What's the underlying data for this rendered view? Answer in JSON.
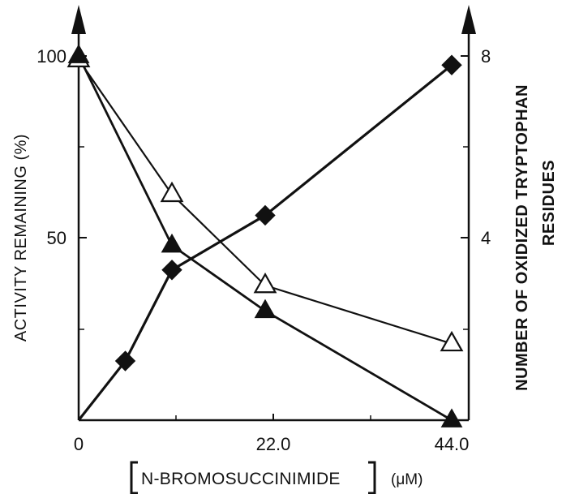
{
  "chart_data": {
    "type": "line",
    "x_label": "N-BROMOSUCCINIMIDE",
    "x_unit": "(μM)",
    "y_left_label": "ACTIVITY REMAINING (%)",
    "y_right_label_line1": "NUMBER OF OXIDIZED TRYPTOPHAN",
    "y_right_label_line2": "RESIDUES",
    "x_ticks": [
      "0",
      "22.0",
      "44.0"
    ],
    "y_left_ticks": [
      "100",
      "50"
    ],
    "y_right_ticks": [
      "8",
      "4"
    ],
    "xlim": [
      0,
      44
    ],
    "ylim_left": [
      0,
      100
    ],
    "ylim_right": [
      0,
      8
    ],
    "series": [
      {
        "marker": "open-triangle",
        "axis": "left",
        "x": [
          0,
          11,
          22,
          44
        ],
        "y": [
          99,
          62,
          37,
          21
        ]
      },
      {
        "marker": "filled-triangle",
        "axis": "left",
        "x": [
          0,
          11,
          22,
          44
        ],
        "y": [
          100,
          48,
          30,
          0
        ]
      },
      {
        "marker": "filled-diamond",
        "axis": "right",
        "x": [
          0,
          5.5,
          11,
          22,
          44
        ],
        "y": [
          0,
          1.3,
          3.3,
          4.5,
          7.8
        ]
      }
    ]
  }
}
